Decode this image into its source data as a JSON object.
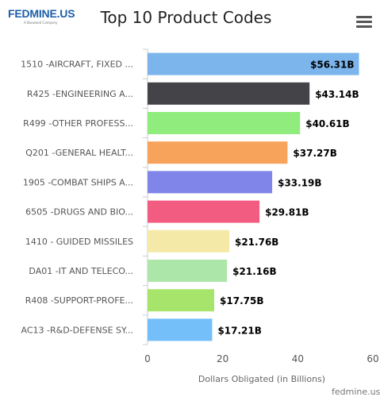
{
  "header": {
    "logo_text": "FEDMINE.US",
    "logo_tagline": "A Boxwood Company",
    "title": "Top 10 Product Codes"
  },
  "footer": {
    "credit": "fedmine.us"
  },
  "colors": {
    "axis_line": "#cccccc",
    "grid": "#e6e6e6",
    "label_text": "#555555",
    "value_text": "#000000"
  },
  "chart_data": {
    "type": "bar",
    "orientation": "horizontal",
    "title": "Top 10 Product Codes",
    "xlabel": "Dollars Obligated (in Billions)",
    "ylabel": "",
    "xlim": [
      0,
      60
    ],
    "x_ticks": [
      0,
      20,
      40,
      60
    ],
    "grid": false,
    "categories": [
      "1510 -AIRCRAFT, FIXED ...",
      "R425 -ENGINEERING A...",
      "R499 -OTHER PROFESS...",
      "Q201 -GENERAL HEALT...",
      "1905 -COMBAT SHIPS A...",
      "6505 -DRUGS AND BIO...",
      "1410 - GUIDED MISSILES",
      "DA01 -IT AND TELECO...",
      "R408 -SUPPORT-PROFE...",
      "AC13 -R&D-DEFENSE SY..."
    ],
    "values": [
      56.31,
      43.14,
      40.61,
      37.27,
      33.19,
      29.81,
      21.76,
      21.16,
      17.75,
      17.21
    ],
    "data_labels": [
      "$56.31B",
      "$43.14B",
      "$40.61B",
      "$37.27B",
      "$33.19B",
      "$29.81B",
      "$21.76B",
      "$21.16B",
      "$17.75B",
      "$17.21B"
    ],
    "bar_colors": [
      "#7cb5ec",
      "#434348",
      "#90ed7d",
      "#f7a35c",
      "#8085e9",
      "#f15c80",
      "#f4e9a6",
      "#ace6a8",
      "#a6e46b",
      "#74bffa"
    ]
  }
}
